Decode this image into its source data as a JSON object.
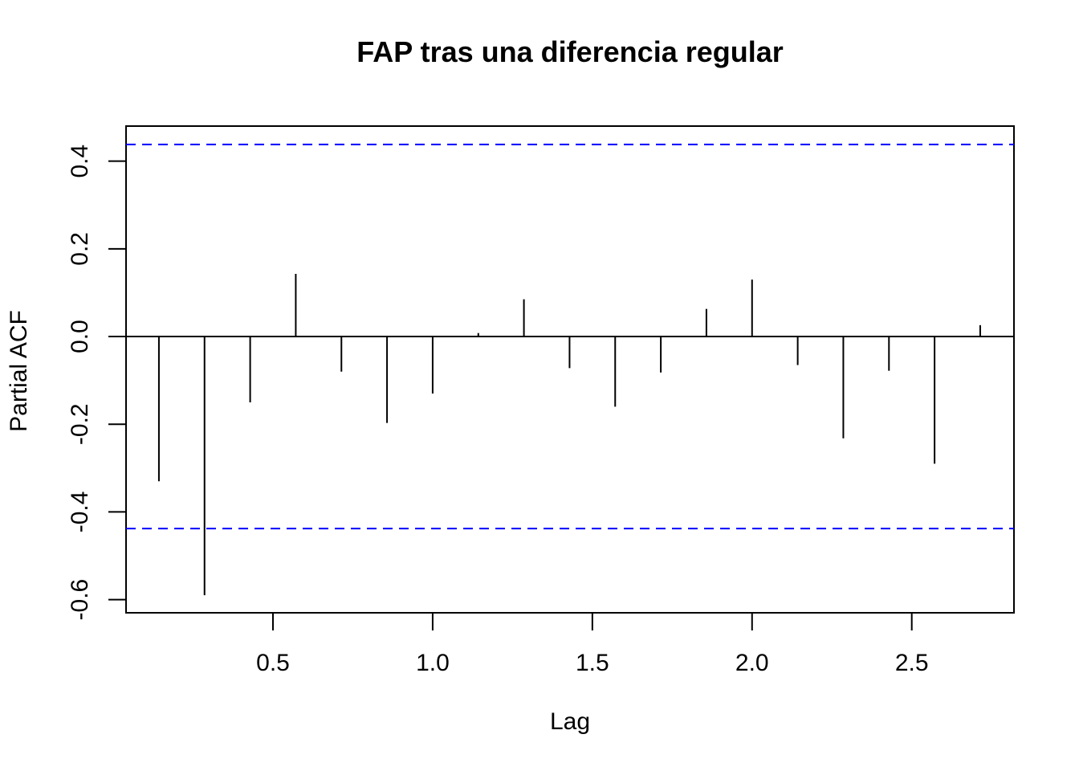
{
  "chart_data": {
    "type": "bar",
    "title": "FAP tras una diferencia regular",
    "xlabel": "Lag",
    "ylabel": "Partial ACF",
    "xlim": [
      0.04,
      2.82
    ],
    "ylim": [
      -0.63,
      0.48
    ],
    "x_ticks": [
      "0.5",
      "1.0",
      "1.5",
      "2.0",
      "2.5"
    ],
    "y_ticks": [
      "-0.6",
      "-0.4",
      "-0.2",
      "0.0",
      "0.2",
      "0.4"
    ],
    "confidence_bounds": [
      0.438,
      -0.438
    ],
    "bound_color": "#0000ff",
    "series": [
      {
        "x": [
          0.1429,
          0.2857,
          0.4286,
          0.5714,
          0.7143,
          0.8571,
          1.0,
          1.1429,
          1.2857,
          1.4286,
          1.5714,
          1.7143,
          1.8571,
          2.0,
          2.1429,
          2.2857,
          2.4286,
          2.5714,
          2.7143
        ],
        "values": [
          -0.33,
          -0.59,
          -0.15,
          0.143,
          -0.08,
          -0.197,
          -0.13,
          0.008,
          0.085,
          -0.072,
          -0.16,
          -0.082,
          0.063,
          0.13,
          -0.065,
          -0.232,
          -0.078,
          -0.29,
          0.026
        ]
      }
    ]
  }
}
